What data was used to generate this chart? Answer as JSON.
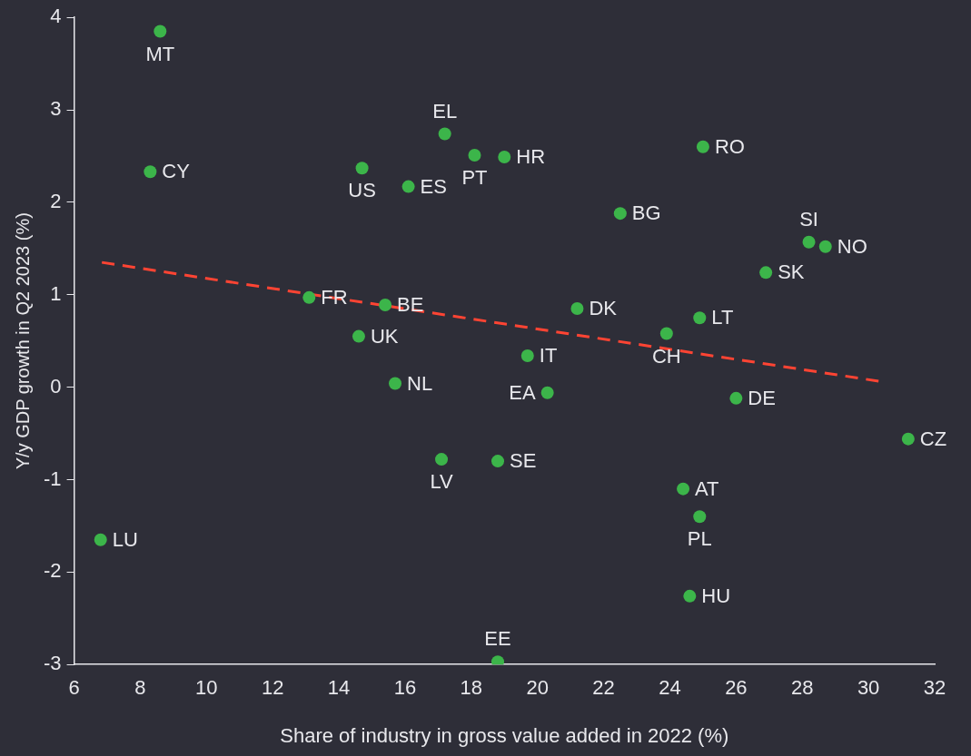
{
  "chart_data": {
    "type": "scatter",
    "xlabel": "Share of industry in gross value added in 2022 (%)",
    "ylabel": "Y/y GDP growth in Q2 2023 (%)",
    "xlim": [
      6,
      32
    ],
    "xticks": [
      6,
      8,
      10,
      12,
      14,
      16,
      18,
      20,
      22,
      24,
      26,
      28,
      30,
      32
    ],
    "ylim": [
      -3,
      4
    ],
    "yticks": [
      -3,
      -2,
      -1,
      0,
      1,
      2,
      3,
      4
    ],
    "grid": false,
    "legend": false,
    "marker": "circle",
    "series": [
      {
        "type": "scatter",
        "color": "#3cb54a",
        "x": [
          8.6,
          8.3,
          14.7,
          16.1,
          17.2,
          18.1,
          19.0,
          25.0,
          22.5,
          28.2,
          28.7,
          26.9,
          13.1,
          15.4,
          21.2,
          24.9,
          23.9,
          14.6,
          19.7,
          15.7,
          20.3,
          26.0,
          31.2,
          17.1,
          18.8,
          24.4,
          24.9,
          6.8,
          24.6,
          18.8
        ],
        "values": [
          3.85,
          2.33,
          2.37,
          2.17,
          2.74,
          2.51,
          2.49,
          2.6,
          1.88,
          1.57,
          1.52,
          1.24,
          0.97,
          0.89,
          0.85,
          0.75,
          0.58,
          0.55,
          0.34,
          0.04,
          -0.06,
          -0.12,
          -0.56,
          -0.78,
          -0.8,
          -1.1,
          -1.4,
          -1.65,
          -2.26,
          -2.97
        ],
        "value_labels": [
          "MT",
          "CY",
          "US",
          "ES",
          "EL",
          "PT",
          "HR",
          "RO",
          "BG",
          "SI",
          "NO",
          "SK",
          "FR",
          "BE",
          "DK",
          "LT",
          "CH",
          "UK",
          "IT",
          "NL",
          "EA",
          "DE",
          "CZ",
          "LV",
          "SE",
          "AT",
          "PL",
          "LU",
          "HU",
          "EE"
        ]
      },
      {
        "type": "line",
        "color": "#ff4433",
        "line_style": "dashed",
        "marker": "none",
        "x": [
          6.84,
          30.4
        ],
        "values": [
          1.35,
          0.06
        ]
      }
    ]
  }
}
